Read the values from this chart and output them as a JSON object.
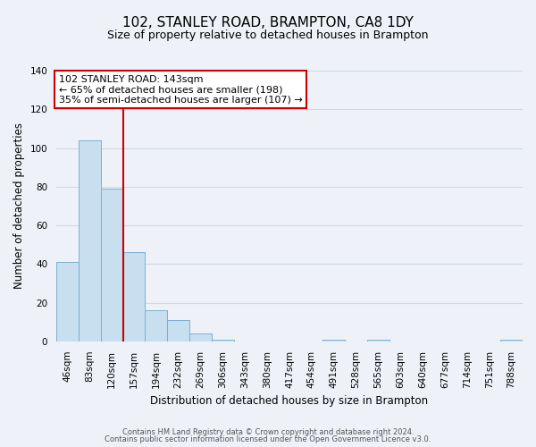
{
  "title": "102, STANLEY ROAD, BRAMPTON, CA8 1DY",
  "subtitle": "Size of property relative to detached houses in Brampton",
  "xlabel": "Distribution of detached houses by size in Brampton",
  "ylabel": "Number of detached properties",
  "bin_labels": [
    "46sqm",
    "83sqm",
    "120sqm",
    "157sqm",
    "194sqm",
    "232sqm",
    "269sqm",
    "306sqm",
    "343sqm",
    "380sqm",
    "417sqm",
    "454sqm",
    "491sqm",
    "528sqm",
    "565sqm",
    "603sqm",
    "640sqm",
    "677sqm",
    "714sqm",
    "751sqm",
    "788sqm"
  ],
  "bar_values": [
    41,
    104,
    79,
    46,
    16,
    11,
    4,
    1,
    0,
    0,
    0,
    0,
    1,
    0,
    1,
    0,
    0,
    0,
    0,
    0,
    1
  ],
  "bar_color": "#c8dff0",
  "bar_edge_color": "#7ab0d0",
  "vline_color": "#cc0000",
  "vline_x_idx": 2.5,
  "ylim": [
    0,
    140
  ],
  "yticks": [
    0,
    20,
    40,
    60,
    80,
    100,
    120,
    140
  ],
  "annotation_title": "102 STANLEY ROAD: 143sqm",
  "annotation_line1": "← 65% of detached houses are smaller (198)",
  "annotation_line2": "35% of semi-detached houses are larger (107) →",
  "annotation_box_facecolor": "#ffffff",
  "annotation_box_edgecolor": "#cc0000",
  "footer1": "Contains HM Land Registry data © Crown copyright and database right 2024.",
  "footer2": "Contains public sector information licensed under the Open Government Licence v3.0.",
  "background_color": "#eef2f8",
  "grid_color": "#d0d8e4",
  "title_fontsize": 11,
  "subtitle_fontsize": 9,
  "ylabel_fontsize": 8.5,
  "xlabel_fontsize": 8.5,
  "tick_fontsize": 7.5,
  "annot_fontsize": 8,
  "footer_fontsize": 6
}
